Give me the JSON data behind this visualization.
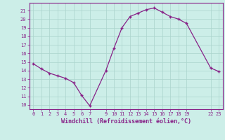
{
  "x": [
    0,
    1,
    2,
    3,
    4,
    5,
    6,
    7,
    9,
    10,
    11,
    12,
    13,
    14,
    15,
    16,
    17,
    18,
    19,
    22,
    23
  ],
  "y": [
    14.8,
    14.2,
    13.7,
    13.4,
    13.1,
    12.6,
    11.1,
    9.9,
    14.0,
    16.6,
    19.0,
    20.3,
    20.7,
    21.1,
    21.3,
    20.8,
    20.3,
    20.0,
    19.5,
    14.3,
    13.9
  ],
  "line_color": "#882288",
  "marker_color": "#882288",
  "bg_color": "#cceee8",
  "grid_color": "#aad4cc",
  "xlabel": "Windchill (Refroidissement éolien,°C)",
  "xticks": [
    0,
    1,
    2,
    3,
    4,
    5,
    6,
    7,
    9,
    10,
    11,
    12,
    13,
    14,
    15,
    16,
    17,
    18,
    19,
    22,
    23
  ],
  "yticks": [
    10,
    11,
    12,
    13,
    14,
    15,
    16,
    17,
    18,
    19,
    20,
    21
  ],
  "ylim": [
    9.5,
    21.9
  ],
  "xlim": [
    -0.5,
    23.5
  ],
  "font_color": "#882288"
}
